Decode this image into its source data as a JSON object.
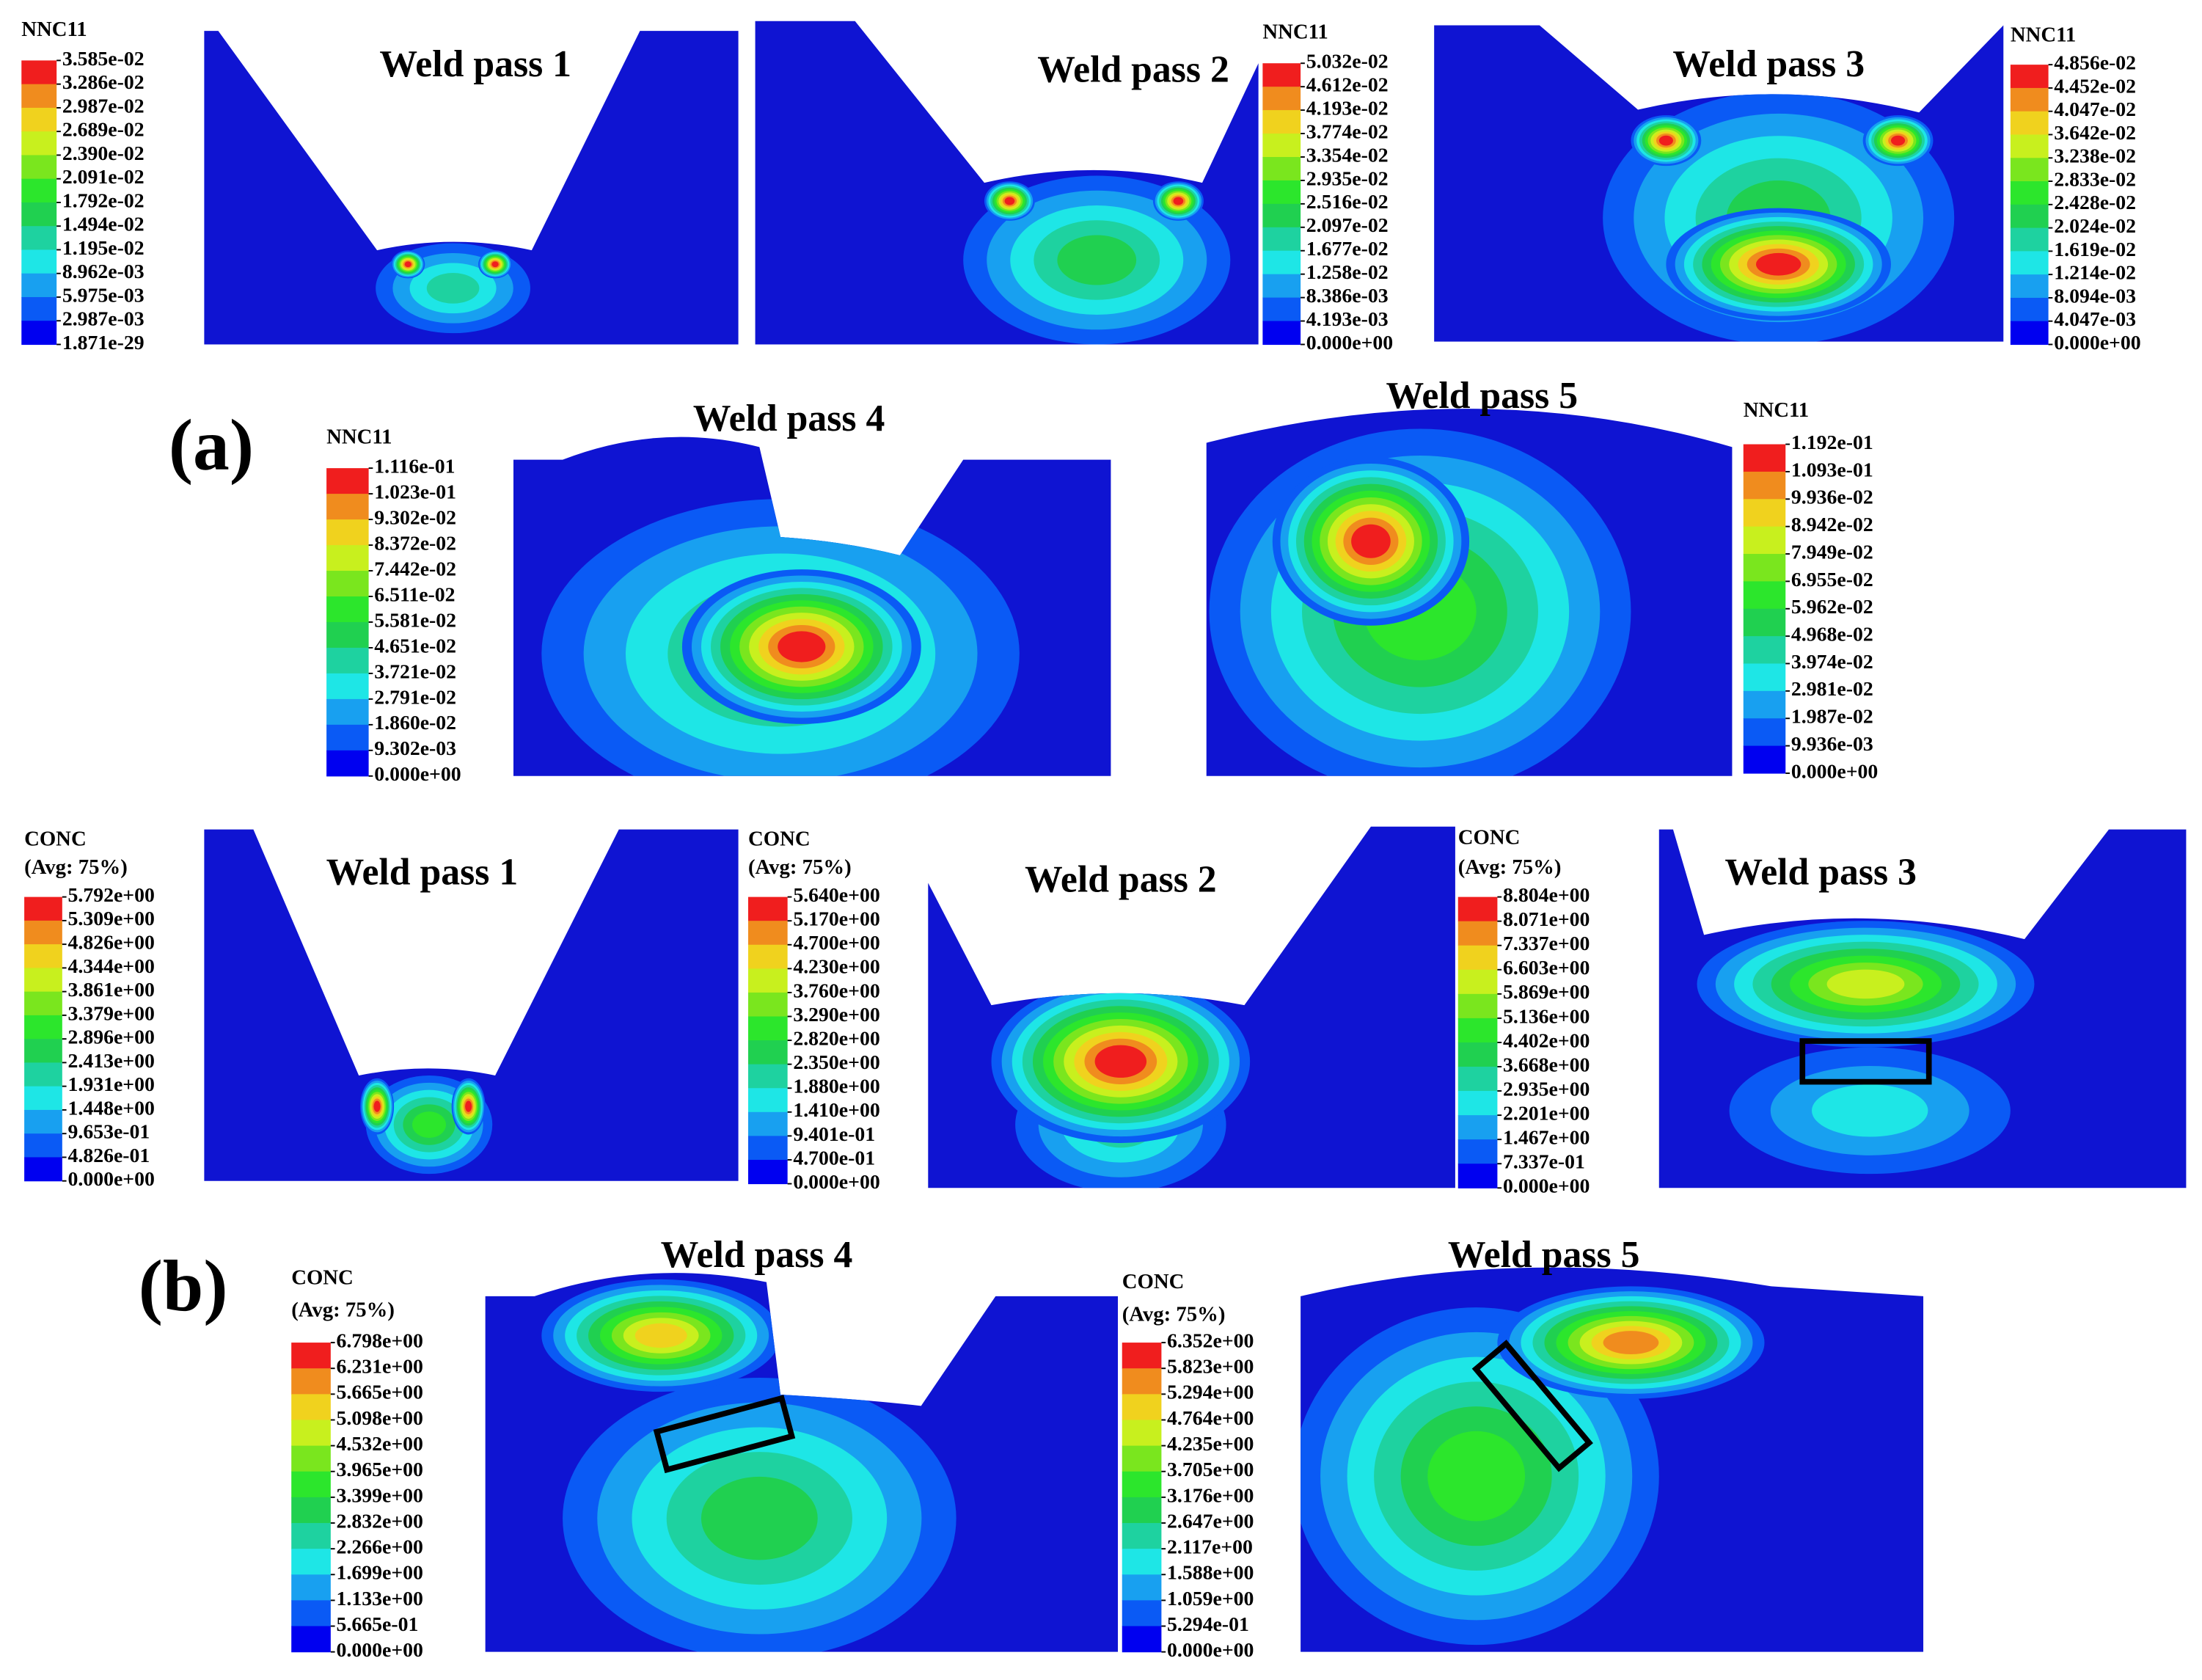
{
  "panel_a": {
    "label": "(a)",
    "plots": [
      {
        "title": "Weld pass 1",
        "legend": {
          "header": "NNC11",
          "labels": [
            "3.585e-02",
            "3.286e-02",
            "2.987e-02",
            "2.689e-02",
            "2.390e-02",
            "2.091e-02",
            "1.792e-02",
            "1.494e-02",
            "1.195e-02",
            "8.962e-03",
            "5.975e-03",
            "2.987e-03",
            "1.871e-29"
          ]
        }
      },
      {
        "title": "Weld pass 2",
        "legend": {
          "header": "NNC11",
          "labels": [
            "5.032e-02",
            "4.612e-02",
            "4.193e-02",
            "3.774e-02",
            "3.354e-02",
            "2.935e-02",
            "2.516e-02",
            "2.097e-02",
            "1.677e-02",
            "1.258e-02",
            "8.386e-03",
            "4.193e-03",
            "0.000e+00"
          ]
        }
      },
      {
        "title": "Weld pass 3",
        "legend": {
          "header": "NNC11",
          "labels": [
            "4.856e-02",
            "4.452e-02",
            "4.047e-02",
            "3.642e-02",
            "3.238e-02",
            "2.833e-02",
            "2.428e-02",
            "2.024e-02",
            "1.619e-02",
            "1.214e-02",
            "8.094e-03",
            "4.047e-03",
            "0.000e+00"
          ]
        }
      },
      {
        "title": "Weld pass 4",
        "legend": {
          "header": "NNC11",
          "labels": [
            "1.116e-01",
            "1.023e-01",
            "9.302e-02",
            "8.372e-02",
            "7.442e-02",
            "6.511e-02",
            "5.581e-02",
            "4.651e-02",
            "3.721e-02",
            "2.791e-02",
            "1.860e-02",
            "9.302e-03",
            "0.000e+00"
          ]
        }
      },
      {
        "title": "Weld pass 5",
        "legend": {
          "header": "NNC11",
          "labels": [
            "1.192e-01",
            "1.093e-01",
            "9.936e-02",
            "8.942e-02",
            "7.949e-02",
            "6.955e-02",
            "5.962e-02",
            "4.968e-02",
            "3.974e-02",
            "2.981e-02",
            "1.987e-02",
            "9.936e-03",
            "0.000e+00"
          ]
        }
      }
    ]
  },
  "panel_b": {
    "label": "(b)",
    "plots": [
      {
        "title": "Weld pass 1",
        "legend": {
          "header": "CONC",
          "subheader": "(Avg: 75%)",
          "labels": [
            "5.792e+00",
            "5.309e+00",
            "4.826e+00",
            "4.344e+00",
            "3.861e+00",
            "3.379e+00",
            "2.896e+00",
            "2.413e+00",
            "1.931e+00",
            "1.448e+00",
            "9.653e-01",
            "4.826e-01",
            "0.000e+00"
          ]
        }
      },
      {
        "title": "Weld pass 2",
        "legend": {
          "header": "CONC",
          "subheader": "(Avg: 75%)",
          "labels": [
            "5.640e+00",
            "5.170e+00",
            "4.700e+00",
            "4.230e+00",
            "3.760e+00",
            "3.290e+00",
            "2.820e+00",
            "2.350e+00",
            "1.880e+00",
            "1.410e+00",
            "9.401e-01",
            "4.700e-01",
            "0.000e+00"
          ]
        }
      },
      {
        "title": "Weld pass 3",
        "legend": {
          "header": "CONC",
          "subheader": "(Avg: 75%)",
          "labels": [
            "8.804e+00",
            "8.071e+00",
            "7.337e+00",
            "6.603e+00",
            "5.869e+00",
            "5.136e+00",
            "4.402e+00",
            "3.668e+00",
            "2.935e+00",
            "2.201e+00",
            "1.467e+00",
            "7.337e-01",
            "0.000e+00"
          ]
        }
      },
      {
        "title": "Weld pass 4",
        "legend": {
          "header": "CONC",
          "subheader": "(Avg: 75%)",
          "labels": [
            "6.798e+00",
            "6.231e+00",
            "5.665e+00",
            "5.098e+00",
            "4.532e+00",
            "3.965e+00",
            "3.399e+00",
            "2.832e+00",
            "2.266e+00",
            "1.699e+00",
            "1.133e+00",
            "5.665e-01",
            "0.000e+00"
          ]
        }
      },
      {
        "title": "Weld pass 5",
        "legend": {
          "header": "CONC",
          "subheader": "(Avg: 75%)",
          "labels": [
            "6.352e+00",
            "5.823e+00",
            "5.294e+00",
            "4.764e+00",
            "4.235e+00",
            "3.705e+00",
            "3.176e+00",
            "2.647e+00",
            "2.117e+00",
            "1.588e+00",
            "1.059e+00",
            "5.294e-01",
            "0.000e+00"
          ]
        }
      }
    ]
  }
}
